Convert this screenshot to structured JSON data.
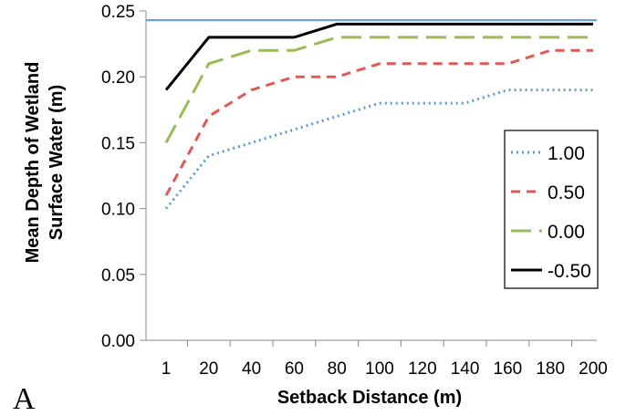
{
  "chart_data": {
    "type": "line",
    "panel_label": "A",
    "xlabel": "Setback Distance (m)",
    "ylabel": "Mean Depth of Wetland Surface Water (m)",
    "ylabel_lines": [
      "Mean Depth of Wetland",
      "Surface Water (m)"
    ],
    "categories": [
      "1",
      "20",
      "40",
      "60",
      "80",
      "100",
      "120",
      "140",
      "160",
      "180",
      "200"
    ],
    "ylim": [
      0,
      0.25
    ],
    "yticks": [
      "0.00",
      "0.05",
      "0.10",
      "0.15",
      "0.20",
      "0.25"
    ],
    "grid": false,
    "legend_position": "right",
    "reference_line": {
      "value": 0.243,
      "color": "#6a9fd8"
    },
    "series": [
      {
        "name": "1.00",
        "color": "#5b9bd5",
        "dash": "2,4",
        "values": [
          0.1,
          0.14,
          0.15,
          0.16,
          0.17,
          0.18,
          0.18,
          0.18,
          0.19,
          0.19,
          0.19
        ]
      },
      {
        "name": "0.50",
        "color": "#e05a55",
        "dash": "10,7",
        "values": [
          0.11,
          0.17,
          0.19,
          0.2,
          0.2,
          0.21,
          0.21,
          0.21,
          0.21,
          0.22,
          0.22
        ]
      },
      {
        "name": "0.00",
        "color": "#9bbb59",
        "dash": "22,9",
        "values": [
          0.15,
          0.21,
          0.22,
          0.22,
          0.23,
          0.23,
          0.23,
          0.23,
          0.23,
          0.23,
          0.23
        ]
      },
      {
        "name": "-0.50",
        "color": "#000000",
        "dash": "",
        "values": [
          0.19,
          0.23,
          0.23,
          0.23,
          0.24,
          0.24,
          0.24,
          0.24,
          0.24,
          0.24,
          0.24
        ]
      }
    ]
  }
}
